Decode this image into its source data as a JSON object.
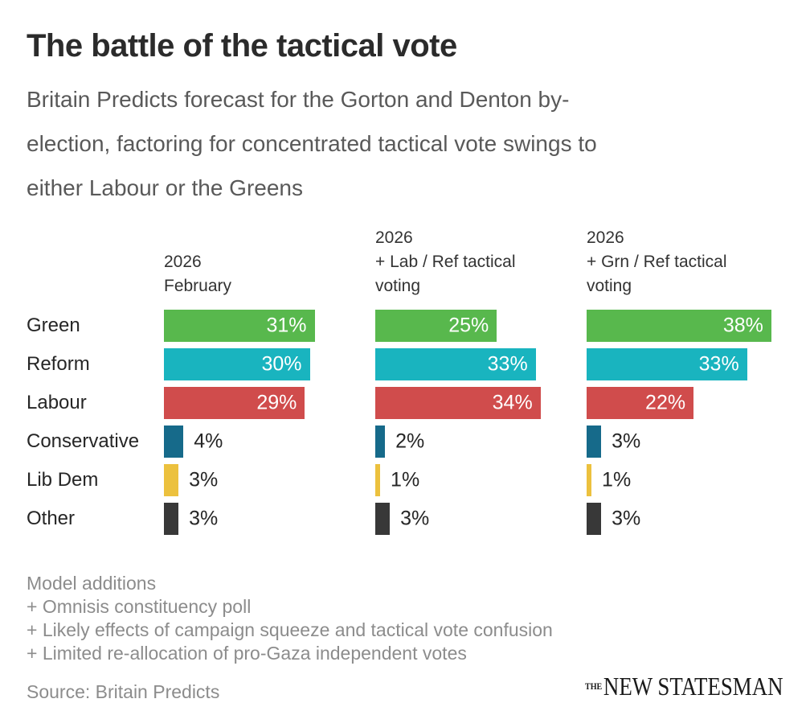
{
  "header": {
    "title": "The battle of the tactical vote",
    "subtitle": "Britain Predicts forecast for the Gorton and Denton by-\nelection, factoring for concentrated tactical vote swings to\neither Labour or the Greens"
  },
  "chart_data": {
    "type": "bar",
    "orientation": "horizontal",
    "categories": [
      "Green",
      "Reform",
      "Labour",
      "Conservative",
      "Lib Dem",
      "Other"
    ],
    "colors": [
      "#58b84d",
      "#19b4bf",
      "#d04c4c",
      "#166a8a",
      "#ecc13e",
      "#383838"
    ],
    "series": [
      {
        "name": "2026\nFebruary",
        "values": [
          31,
          30,
          29,
          4,
          3,
          3
        ]
      },
      {
        "name": "2026\n+ Lab / Ref tactical\nvoting",
        "values": [
          25,
          33,
          34,
          2,
          1,
          3
        ]
      },
      {
        "name": "2026\n+ Grn / Ref tactical\nvoting",
        "values": [
          38,
          33,
          22,
          3,
          1,
          3
        ]
      }
    ],
    "value_suffix": "%",
    "xlim": [
      0,
      40
    ],
    "grid": false,
    "legend": false,
    "value_label_color_inside": "#ffffff",
    "value_label_color_outside": "#262626"
  },
  "footer": {
    "notes": [
      "Model additions",
      "+ Omnisis constituency poll",
      "+ Likely effects of campaign squeeze and tactical vote confusion",
      "+ Limited re-allocation of pro-Gaza independent votes"
    ],
    "source": "Source: Britain Predicts",
    "logo_the": "THE",
    "logo_name": "NEW STATESMAN"
  }
}
